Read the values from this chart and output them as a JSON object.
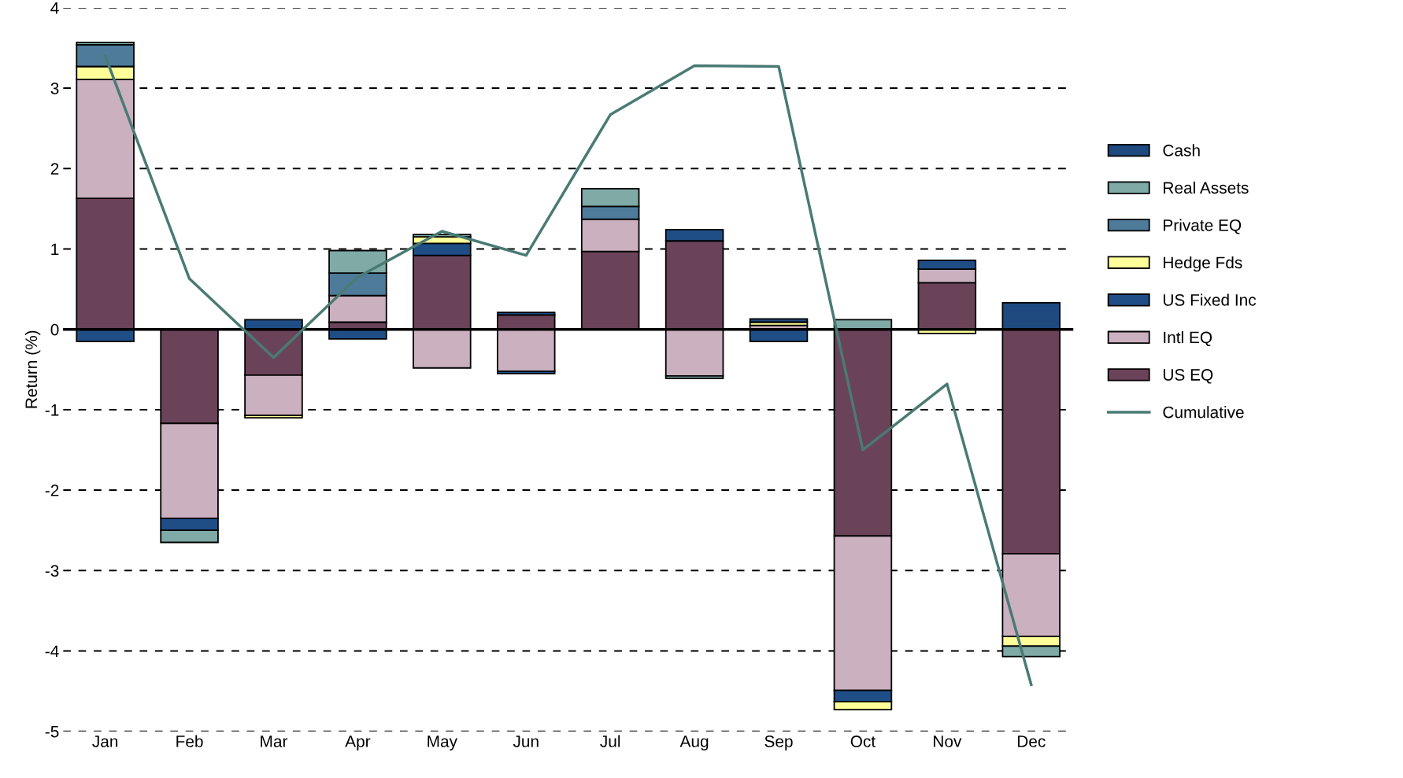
{
  "chart_data": {
    "type": "bar",
    "stacked": true,
    "ylabel": "Return (%)",
    "categories": [
      "Jan",
      "Feb",
      "Mar",
      "Apr",
      "May",
      "Jun",
      "Jul",
      "Aug",
      "Sep",
      "Oct",
      "Nov",
      "Dec"
    ],
    "ylim": [
      -5,
      4
    ],
    "yticks": [
      -5,
      -4,
      -3,
      -2,
      -1,
      0,
      1,
      2,
      3,
      4
    ],
    "grid": "y",
    "legend": "right",
    "series": [
      {
        "name": "US EQ",
        "color": "#6b4359",
        "values": [
          1.63,
          -1.17,
          -0.57,
          0.09,
          0.92,
          0.18,
          0.97,
          1.1,
          null,
          -2.57,
          0.58,
          -2.79
        ]
      },
      {
        "name": "Intl EQ",
        "color": "#cbb0bf",
        "values": [
          1.48,
          -1.18,
          -0.5,
          0.33,
          -0.48,
          -0.52,
          0.4,
          -0.58,
          0.05,
          -1.92,
          0.17,
          -1.03
        ]
      },
      {
        "name": "US Fixed Inc",
        "color": "#1f4e87",
        "values": [
          -0.15,
          -0.15,
          0.12,
          -0.12,
          0.15,
          -0.03,
          null,
          0.14,
          -0.15,
          -0.14,
          0.11,
          null
        ]
      },
      {
        "name": "Hedge Fds",
        "color": "#ffff99",
        "values": [
          0.16,
          null,
          -0.03,
          null,
          0.08,
          null,
          null,
          null,
          0.04,
          -0.1,
          -0.05,
          -0.12
        ]
      },
      {
        "name": "Private EQ",
        "color": "#4f7b9a",
        "values": [
          0.27,
          null,
          null,
          0.28,
          null,
          null,
          0.16,
          null,
          null,
          null,
          null,
          null
        ]
      },
      {
        "name": "Real Assets",
        "color": "#7faaa6",
        "values": [
          0.03,
          -0.15,
          null,
          0.28,
          0.03,
          null,
          0.22,
          -0.03,
          null,
          0.12,
          null,
          -0.13
        ]
      },
      {
        "name": "Cash",
        "color": "#1e4a80",
        "values": [
          null,
          null,
          null,
          null,
          null,
          0.03,
          null,
          null,
          0.04,
          null,
          null,
          0.33
        ]
      },
      {
        "name": "Cumulative",
        "type": "line",
        "color": "#4a7a74",
        "values": [
          3.4,
          0.63,
          -0.35,
          0.65,
          1.22,
          0.92,
          2.67,
          3.28,
          3.27,
          -1.5,
          -0.68,
          -4.42
        ]
      }
    ]
  }
}
